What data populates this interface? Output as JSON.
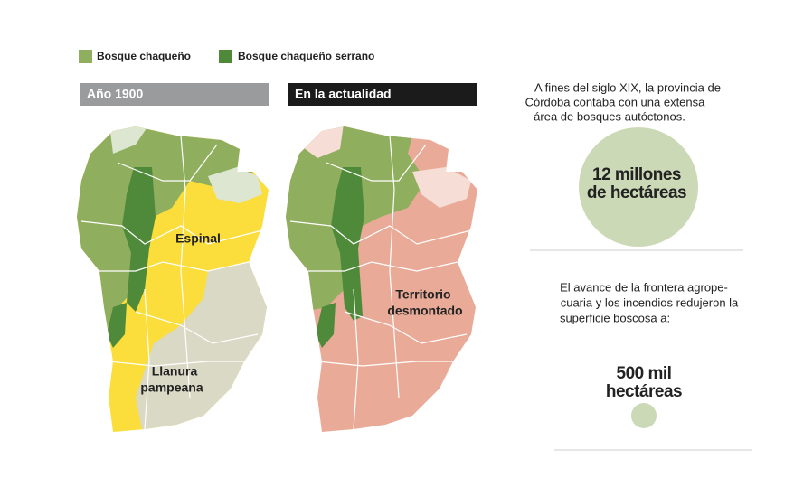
{
  "legend": [
    "Bosque chaqueño",
    "Bosque chaqueño serrano"
  ],
  "panels": [
    {
      "title": "Año 1900",
      "labels": [
        "Espinal",
        "Llanura",
        "pampeana"
      ]
    },
    {
      "title": "En la actualidad",
      "labels": [
        "Territorio",
        "desmontado"
      ]
    }
  ],
  "blocks": [
    {
      "text": [
        "A fines del siglo XIX, la provincia de",
        "Córdoba contaba con una extensa",
        "área de bosques autóctonos."
      ],
      "figure": [
        "12 millones",
        "de hectáreas"
      ]
    },
    {
      "text": [
        "El avance de la frontera agrope-",
        "cuaria y los incendios redujeron la",
        "superficie boscosa a:"
      ],
      "figure": [
        "500 mil",
        "hectáreas"
      ]
    }
  ]
}
